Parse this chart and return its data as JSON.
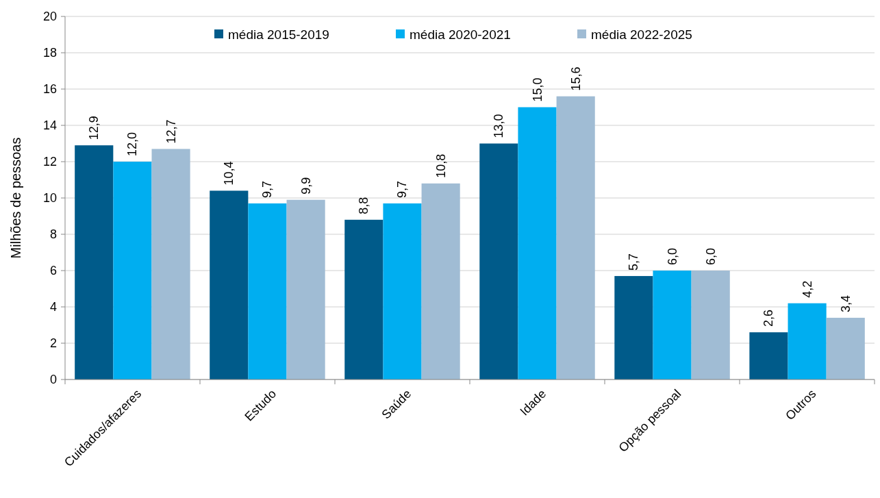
{
  "chart_data": {
    "type": "bar",
    "ylabel": "Milhões de pessoas",
    "categories": [
      "Cuidados/afazeres",
      "Estudo",
      "Saúde",
      "Idade",
      "Opção pessoal",
      "Outros"
    ],
    "series": [
      {
        "name": "média 2015-2019",
        "color": "#005b8a",
        "values": [
          12.9,
          10.4,
          8.8,
          13.0,
          5.7,
          2.6
        ],
        "value_labels": [
          "12,9",
          "10,4",
          "8,8",
          "13,0",
          "5,7",
          "2,6"
        ]
      },
      {
        "name": "média 2020-2021",
        "color": "#00aef0",
        "values": [
          12.0,
          9.7,
          9.7,
          15.0,
          6.0,
          4.2
        ],
        "value_labels": [
          "12,0",
          "9,7",
          "9,7",
          "15,0",
          "6,0",
          "4,2"
        ]
      },
      {
        "name": "média 2022-2025",
        "color": "#a0bcd4",
        "values": [
          12.7,
          9.9,
          10.8,
          15.6,
          6.0,
          3.4
        ],
        "value_labels": [
          "12,7",
          "9,9",
          "10,8",
          "15,6",
          "6,0",
          "3,4"
        ]
      }
    ],
    "ylim": [
      0,
      20
    ],
    "yticks": [
      0,
      2,
      4,
      6,
      8,
      10,
      12,
      14,
      16,
      18,
      20
    ],
    "grid": "y",
    "legend": "top"
  }
}
